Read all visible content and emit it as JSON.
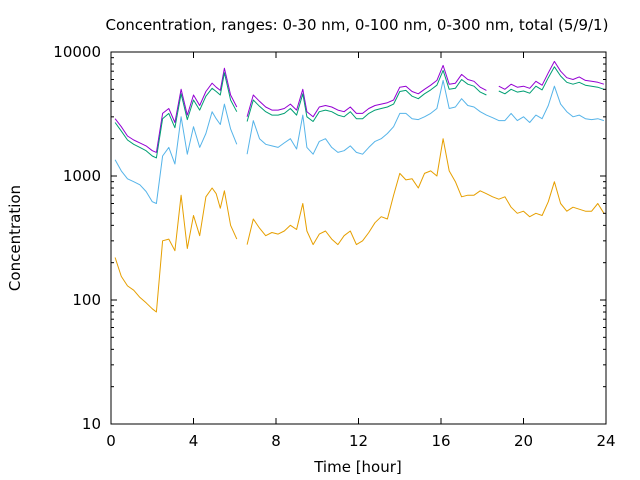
{
  "chart_data": {
    "type": "line",
    "title": "Concentration, ranges: 0-30 nm, 0-100 nm, 0-300 nm, total (5/9/1)",
    "xlabel": "Time [hour]",
    "ylabel": "Concentration",
    "xlim": [
      0,
      24
    ],
    "ylim": [
      10,
      10000
    ],
    "yscale": "log",
    "grid": false,
    "legend": "none",
    "x_ticks": [
      0,
      4,
      8,
      12,
      16,
      20,
      24
    ],
    "x_tick_labels": [
      "0",
      "4",
      "8",
      "12",
      "16",
      "20",
      "24"
    ],
    "y_ticks": [
      10,
      100,
      1000,
      10000
    ],
    "y_tick_labels": [
      "10",
      "100",
      "1000",
      "10000"
    ],
    "x": [
      0.2,
      0.5,
      0.8,
      1.1,
      1.4,
      1.7,
      2.0,
      2.2,
      2.5,
      2.8,
      3.1,
      3.4,
      3.7,
      4.0,
      4.3,
      4.6,
      4.9,
      5.1,
      5.3,
      5.5,
      5.8,
      6.1,
      6.3,
      6.6,
      6.9,
      7.2,
      7.5,
      7.8,
      8.1,
      8.4,
      8.7,
      9.0,
      9.3,
      9.5,
      9.8,
      10.1,
      10.4,
      10.7,
      11.0,
      11.3,
      11.6,
      11.9,
      12.2,
      12.5,
      12.8,
      13.1,
      13.4,
      13.7,
      14.0,
      14.3,
      14.6,
      14.9,
      15.2,
      15.5,
      15.8,
      16.1,
      16.4,
      16.7,
      17.0,
      17.3,
      17.6,
      17.9,
      18.2,
      18.5,
      18.8,
      19.1,
      19.4,
      19.7,
      20.0,
      20.3,
      20.6,
      20.9,
      21.2,
      21.5,
      21.8,
      22.1,
      22.4,
      22.7,
      23.0,
      23.3,
      23.6,
      23.9
    ],
    "series": [
      {
        "color": "#9400d3",
        "values": [
          2900,
          2500,
          2100,
          1950,
          1850,
          1750,
          1600,
          1550,
          3200,
          3500,
          2700,
          5000,
          3100,
          4500,
          3700,
          4800,
          5600,
          5200,
          4900,
          7400,
          4500,
          3600,
          null,
          3000,
          4500,
          4000,
          3600,
          3400,
          3400,
          3500,
          3800,
          3400,
          5000,
          3300,
          3000,
          3600,
          3700,
          3600,
          3400,
          3300,
          3600,
          3200,
          3200,
          3500,
          3700,
          3800,
          3900,
          4100,
          5200,
          5300,
          4800,
          4600,
          5000,
          5400,
          5900,
          7800,
          5500,
          5600,
          6600,
          6000,
          5800,
          5200,
          4900,
          null,
          5300,
          5000,
          5500,
          5200,
          5300,
          5100,
          5800,
          5400,
          6800,
          8400,
          7000,
          6200,
          6000,
          6300,
          5900,
          5800,
          5700,
          5500
        ]
      },
      {
        "color": "#009e73",
        "values": [
          2700,
          2300,
          1950,
          1800,
          1700,
          1600,
          1450,
          1400,
          2900,
          3200,
          2450,
          4600,
          2850,
          4100,
          3400,
          4400,
          5100,
          4800,
          4500,
          6800,
          4100,
          3300,
          null,
          2750,
          4100,
          3650,
          3300,
          3100,
          3100,
          3200,
          3500,
          3100,
          4600,
          3000,
          2750,
          3300,
          3400,
          3300,
          3100,
          3000,
          3300,
          2900,
          2900,
          3200,
          3400,
          3500,
          3600,
          3800,
          4800,
          4900,
          4400,
          4200,
          4600,
          4950,
          5400,
          7100,
          5000,
          5100,
          6000,
          5500,
          5300,
          4750,
          4500,
          null,
          4850,
          4600,
          5000,
          4750,
          4850,
          4650,
          5300,
          4950,
          6200,
          7600,
          6400,
          5700,
          5500,
          5700,
          5400,
          5300,
          5200,
          5000
        ]
      },
      {
        "color": "#56b4e9",
        "values": [
          1350,
          1100,
          950,
          900,
          850,
          750,
          620,
          600,
          1450,
          1700,
          1250,
          3000,
          1500,
          2500,
          1700,
          2200,
          3300,
          2900,
          2600,
          3800,
          2400,
          1800,
          null,
          1500,
          2800,
          2000,
          1800,
          1750,
          1700,
          1850,
          2000,
          1650,
          3100,
          1700,
          1500,
          1900,
          2000,
          1700,
          1550,
          1600,
          1750,
          1550,
          1500,
          1700,
          1900,
          2000,
          2200,
          2500,
          3200,
          3200,
          2900,
          2850,
          3000,
          3200,
          3500,
          5900,
          3500,
          3600,
          4200,
          3700,
          3600,
          3300,
          3100,
          2950,
          2800,
          2800,
          3200,
          2800,
          3000,
          2700,
          3100,
          2900,
          3700,
          5300,
          3800,
          3300,
          3000,
          3100,
          2900,
          2850,
          2900,
          2800
        ]
      },
      {
        "color": "#e69f00",
        "values": [
          220,
          155,
          130,
          120,
          105,
          95,
          85,
          80,
          300,
          310,
          250,
          700,
          260,
          480,
          330,
          680,
          800,
          720,
          550,
          760,
          400,
          310,
          null,
          280,
          450,
          380,
          330,
          350,
          340,
          360,
          400,
          370,
          600,
          360,
          280,
          340,
          360,
          310,
          280,
          330,
          360,
          280,
          300,
          350,
          420,
          470,
          450,
          700,
          1050,
          930,
          950,
          800,
          1050,
          1100,
          1000,
          2000,
          1100,
          900,
          680,
          700,
          700,
          760,
          720,
          680,
          650,
          680,
          560,
          500,
          520,
          470,
          500,
          480,
          620,
          900,
          600,
          520,
          560,
          540,
          520,
          520,
          600,
          500
        ]
      }
    ]
  }
}
